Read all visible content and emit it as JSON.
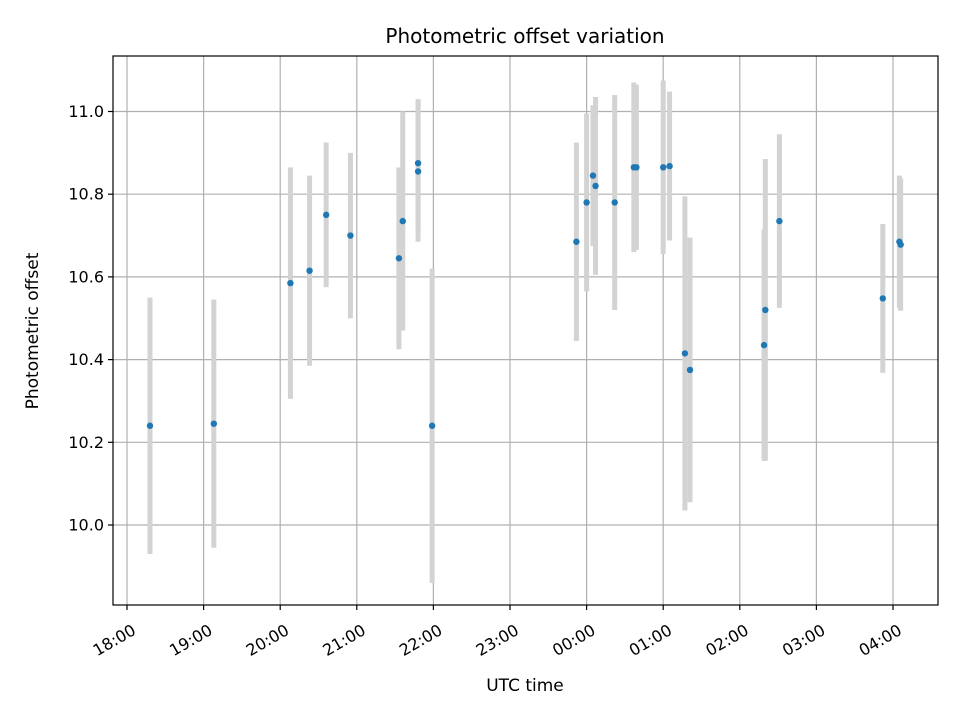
{
  "chart_data": {
    "type": "scatter",
    "title": "Photometric offset variation",
    "xlabel": "UTC time",
    "ylabel": "Photometric offset",
    "grid": true,
    "x_ticks": [
      "18:00",
      "19:00",
      "20:00",
      "21:00",
      "22:00",
      "23:00",
      "00:00",
      "01:00",
      "02:00",
      "03:00",
      "04:00"
    ],
    "y_ticks": [
      "10.0",
      "10.2",
      "10.4",
      "10.6",
      "10.8",
      "11.0"
    ],
    "series": [
      {
        "color": "#1f77b4",
        "error_color": "#d3d3d3",
        "points": [
          {
            "time": "18:18",
            "value": 10.24,
            "err": 0.31
          },
          {
            "time": "19:08",
            "value": 10.245,
            "err": 0.3
          },
          {
            "time": "20:08",
            "value": 10.585,
            "err": 0.28
          },
          {
            "time": "20:23",
            "value": 10.615,
            "err": 0.23
          },
          {
            "time": "20:36",
            "value": 10.75,
            "err": 0.175
          },
          {
            "time": "20:55",
            "value": 10.7,
            "err": 0.2
          },
          {
            "time": "21:33",
            "value": 10.645,
            "err": 0.22
          },
          {
            "time": "21:36",
            "value": 10.735,
            "err": 0.265
          },
          {
            "time": "21:48",
            "value": 10.875,
            "err": 0.155
          },
          {
            "time": "21:48",
            "value": 10.855,
            "err": 0.17
          },
          {
            "time": "21:59",
            "value": 10.24,
            "err": 0.38
          },
          {
            "time": "23:52",
            "value": 10.685,
            "err": 0.24
          },
          {
            "time": "00:00",
            "value": 10.78,
            "err": 0.215
          },
          {
            "time": "00:05",
            "value": 10.845,
            "err": 0.17
          },
          {
            "time": "00:07",
            "value": 10.82,
            "err": 0.215
          },
          {
            "time": "00:22",
            "value": 10.78,
            "err": 0.26
          },
          {
            "time": "00:37",
            "value": 10.865,
            "err": 0.205
          },
          {
            "time": "00:39",
            "value": 10.865,
            "err": 0.2
          },
          {
            "time": "01:00",
            "value": 10.865,
            "err": 0.21
          },
          {
            "time": "01:05",
            "value": 10.868,
            "err": 0.18
          },
          {
            "time": "01:17",
            "value": 10.415,
            "err": 0.38
          },
          {
            "time": "01:21",
            "value": 10.375,
            "err": 0.32
          },
          {
            "time": "02:19",
            "value": 10.435,
            "err": 0.28
          },
          {
            "time": "02:20",
            "value": 10.52,
            "err": 0.365
          },
          {
            "time": "02:31",
            "value": 10.735,
            "err": 0.21
          },
          {
            "time": "03:52",
            "value": 10.548,
            "err": 0.18
          },
          {
            "time": "04:05",
            "value": 10.685,
            "err": 0.16
          },
          {
            "time": "04:06",
            "value": 10.678,
            "err": 0.16
          }
        ]
      }
    ]
  }
}
